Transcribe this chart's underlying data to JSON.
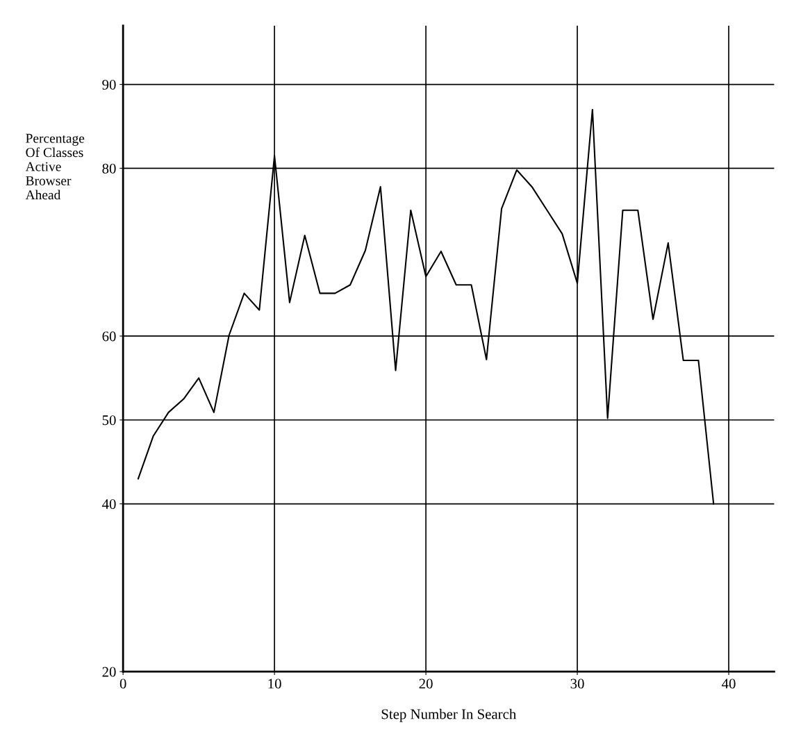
{
  "chart_data": {
    "type": "line",
    "xlabel": "Step Number In Search",
    "ylabel": "Percentage\nOf Classes\nActive\nBrowser\nAhead",
    "x": [
      1,
      2,
      3,
      4,
      5,
      6,
      7,
      8,
      9,
      10,
      11,
      12,
      13,
      14,
      15,
      16,
      17,
      18,
      19,
      20,
      21,
      22,
      23,
      24,
      25,
      26,
      27,
      28,
      29,
      30,
      31,
      32,
      33,
      34,
      35,
      36,
      37,
      38,
      39
    ],
    "series": [
      {
        "color": "#000000",
        "values": [
          43.0,
          48.1,
          50.9,
          52.5,
          55.0,
          50.9,
          60.1,
          65.1,
          63.1,
          81.5,
          64.0,
          72.0,
          65.1,
          65.1,
          66.1,
          70.2,
          77.8,
          55.9,
          75.0,
          67.1,
          70.1,
          66.1,
          66.1,
          57.2,
          75.2,
          79.8,
          77.8,
          75.0,
          72.2,
          66.3,
          87.0,
          50.2,
          75.0,
          75.0,
          62.0,
          71.1,
          57.1,
          57.1,
          40.0
        ]
      }
    ],
    "xlim": [
      0,
      43
    ],
    "ylim": [
      20,
      97
    ],
    "xticks": [
      0,
      10,
      20,
      30,
      40
    ],
    "yticks": [
      20,
      40,
      50,
      60,
      80,
      90
    ],
    "grid": true,
    "legend": false,
    "marker": "none",
    "line_style": "solid"
  }
}
